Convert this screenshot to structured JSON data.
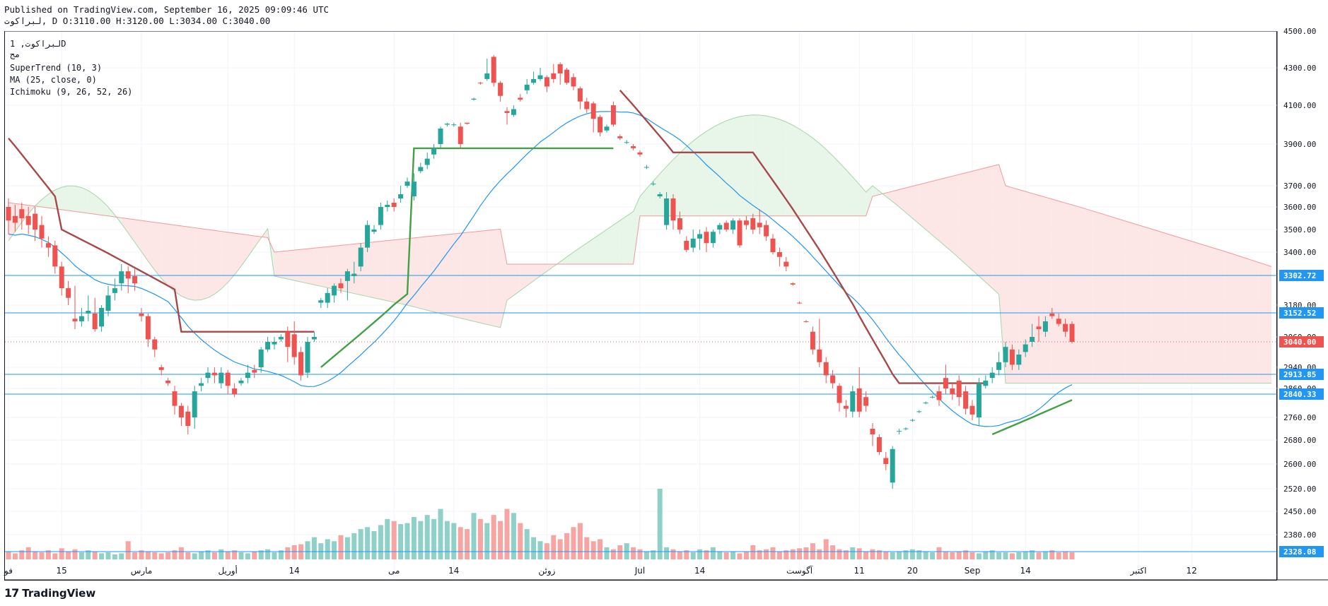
{
  "header": {
    "published": "Published on TradingView.com, September 16, 2025 09:09:46 UTC",
    "ohlc": "لبراكوت, D O:3110.00 H:3120.00 L:3034.00 C:3040.00"
  },
  "legend": {
    "symbol": "لبراكوت, 1D",
    "symbol_sub": "مج",
    "supertrend": "SuperTrend (10, 3)",
    "ma": "MA (25, close, 0)",
    "ichimoku": "Ichimoku (9, 26, 52, 26)"
  },
  "brand": {
    "logo": "17",
    "name": "TradingView"
  },
  "colors": {
    "up": "#26a69a",
    "down": "#ef5350",
    "supertrend_down": "#a84848",
    "supertrend_up": "#43a047",
    "ma": "#2196f3",
    "cloud_green": "#e8f5e9",
    "cloud_red": "#fde6e6",
    "hline": "#2196f3",
    "last_price": "#ef5350"
  },
  "chart_data": {
    "type": "candlestick",
    "y_ticks": [
      4500,
      4300,
      4100,
      3900,
      3700,
      3600,
      3500,
      3400,
      3180,
      3060,
      2940,
      2860,
      2760,
      2680,
      2600,
      2520,
      2450,
      2380
    ],
    "x_ticks": [
      {
        "i": 0,
        "label": "فو"
      },
      {
        "i": 8,
        "label": "15"
      },
      {
        "i": 20,
        "label": "مارس"
      },
      {
        "i": 33,
        "label": "أوريل"
      },
      {
        "i": 43,
        "label": "14"
      },
      {
        "i": 58,
        "label": "مى"
      },
      {
        "i": 67,
        "label": "14"
      },
      {
        "i": 81,
        "label": "زوئن"
      },
      {
        "i": 95,
        "label": "Jul"
      },
      {
        "i": 104,
        "label": "14"
      },
      {
        "i": 119,
        "label": "آگوست"
      },
      {
        "i": 128,
        "label": "11"
      },
      {
        "i": 136,
        "label": "20"
      },
      {
        "i": 145,
        "label": "Sep"
      },
      {
        "i": 153,
        "label": "14"
      },
      {
        "i": 170,
        "label": "اكتبر"
      },
      {
        "i": 178,
        "label": "12"
      }
    ],
    "horizontal_levels": [
      {
        "price": 3302.72,
        "label": "3302.72"
      },
      {
        "price": 3152.52,
        "label": "3152.52"
      },
      {
        "price": 2913.85,
        "label": "2913.85"
      },
      {
        "price": 2840.33,
        "label": "2840.33"
      },
      {
        "price": 2328.08,
        "label": "2328.08"
      }
    ],
    "last_price": {
      "price": 3040.0,
      "label": "3040.00"
    },
    "candles": [
      [
        3600,
        3540,
        3640,
        3480
      ],
      [
        3560,
        3530,
        3610,
        3490
      ],
      [
        3590,
        3550,
        3620,
        3500
      ],
      [
        3560,
        3520,
        3600,
        3480
      ],
      [
        3570,
        3500,
        3600,
        3450
      ],
      [
        3520,
        3460,
        3560,
        3420
      ],
      [
        3440,
        3420,
        3470,
        3380
      ],
      [
        3430,
        3340,
        3450,
        3310
      ],
      [
        3340,
        3250,
        3360,
        3220
      ],
      [
        3250,
        3210,
        3280,
        3180
      ],
      [
        3130,
        3120,
        3260,
        3090
      ],
      [
        3120,
        3140,
        3170,
        3100
      ],
      [
        3150,
        3160,
        3220,
        3120
      ],
      [
        3150,
        3090,
        3210,
        3080
      ],
      [
        3100,
        3170,
        3180,
        3080
      ],
      [
        3160,
        3220,
        3260,
        3140
      ],
      [
        3230,
        3250,
        3290,
        3200
      ],
      [
        3270,
        3320,
        3350,
        3240
      ],
      [
        3320,
        3290,
        3340,
        3230
      ],
      [
        3300,
        3270,
        3330,
        3240
      ],
      [
        3150,
        3140,
        3170,
        3120
      ],
      [
        3140,
        3050,
        3150,
        3020
      ],
      [
        3050,
        3010,
        3060,
        2980
      ],
      [
        2940,
        2930,
        2950,
        2910
      ],
      [
        2890,
        2880,
        2900,
        2870
      ],
      [
        2850,
        2800,
        2870,
        2770
      ],
      [
        2800,
        2760,
        2810,
        2730
      ],
      [
        2780,
        2730,
        2800,
        2700
      ],
      [
        2760,
        2850,
        2870,
        2720
      ],
      [
        2870,
        2880,
        2900,
        2850
      ],
      [
        2900,
        2920,
        2940,
        2880
      ],
      [
        2920,
        2910,
        2940,
        2880
      ],
      [
        2880,
        2920,
        2940,
        2860
      ],
      [
        2920,
        2870,
        2930,
        2840
      ],
      [
        2860,
        2840,
        2880,
        2830
      ],
      [
        2880,
        2890,
        2900,
        2870
      ],
      [
        2900,
        2920,
        2950,
        2880
      ],
      [
        2930,
        2920,
        2950,
        2900
      ],
      [
        2940,
        3010,
        3020,
        2920
      ],
      [
        3010,
        3040,
        3060,
        3000
      ],
      [
        3030,
        3040,
        3060,
        3010
      ],
      [
        3050,
        3060,
        3070,
        3040
      ],
      [
        3080,
        3020,
        3100,
        2960
      ],
      [
        3070,
        2980,
        3120,
        2950
      ],
      [
        3000,
        2910,
        3020,
        2890
      ],
      [
        2920,
        3040,
        3060,
        2900
      ],
      [
        3050,
        3060,
        3080,
        3040
      ],
      [
        3190,
        3200,
        3210,
        3170
      ],
      [
        3190,
        3230,
        3250,
        3170
      ],
      [
        3220,
        3260,
        3270,
        3190
      ],
      [
        3270,
        3250,
        3290,
        3230
      ],
      [
        3280,
        3320,
        3330,
        3200
      ],
      [
        3300,
        3310,
        3360,
        3270
      ],
      [
        3340,
        3420,
        3440,
        3320
      ],
      [
        3420,
        3520,
        3540,
        3400
      ],
      [
        3490,
        3500,
        3520,
        3480
      ],
      [
        3520,
        3600,
        3620,
        3500
      ],
      [
        3600,
        3610,
        3630,
        3580
      ],
      [
        3620,
        3600,
        3640,
        3580
      ],
      [
        3640,
        3660,
        3700,
        3620
      ],
      [
        3700,
        3720,
        3740,
        3690
      ],
      [
        3650,
        3720,
        3760,
        3630
      ],
      [
        3770,
        3790,
        3810,
        3760
      ],
      [
        3800,
        3830,
        3860,
        3780
      ],
      [
        3850,
        3880,
        3900,
        3830
      ],
      [
        3900,
        3980,
        3990,
        3880
      ],
      [
        4000,
        4005,
        4010,
        3990
      ],
      [
        4000,
        4001,
        4010,
        3990
      ],
      [
        3990,
        3900,
        4010,
        3880
      ],
      [
        4010,
        4005,
        4010,
        4000
      ],
      [
        4130,
        4135,
        4140,
        4125
      ],
      [
        4220,
        4218,
        4225,
        4210
      ],
      [
        4240,
        4270,
        4350,
        4230
      ],
      [
        4360,
        4220,
        4370,
        4200
      ],
      [
        4220,
        4150,
        4230,
        4120
      ],
      [
        4070,
        4060,
        4090,
        4000
      ],
      [
        4050,
        4080,
        4100,
        4040
      ],
      [
        4140,
        4130,
        4160,
        4120
      ],
      [
        4180,
        4210,
        4240,
        4160
      ],
      [
        4220,
        4240,
        4280,
        4210
      ],
      [
        4240,
        4260,
        4300,
        4230
      ],
      [
        4250,
        4200,
        4260,
        4170
      ],
      [
        4270,
        4240,
        4320,
        4220
      ],
      [
        4320,
        4270,
        4330,
        4210
      ],
      [
        4290,
        4220,
        4300,
        4210
      ],
      [
        4250,
        4200,
        4270,
        4180
      ],
      [
        4190,
        4120,
        4200,
        4080
      ],
      [
        4120,
        4080,
        4140,
        4060
      ],
      [
        4110,
        4030,
        4120,
        3960
      ],
      [
        4040,
        3960,
        4050,
        3940
      ],
      [
        3970,
        3990,
        4000,
        3960
      ],
      [
        4100,
        4000,
        4120,
        3990
      ],
      [
        3940,
        3930,
        3950,
        3920
      ],
      [
        3910,
        3910,
        3920,
        3900
      ],
      [
        3890,
        3880,
        3900,
        3870
      ],
      [
        3860,
        3850,
        3870,
        3840
      ],
      [
        3790,
        3790,
        3800,
        3780
      ],
      [
        3710,
        3710,
        3720,
        3700
      ],
      [
        3650,
        3660,
        3670,
        3640
      ],
      [
        3520,
        3640,
        3670,
        3500
      ],
      [
        3640,
        3540,
        3660,
        3500
      ],
      [
        3550,
        3500,
        3580,
        3480
      ],
      [
        3450,
        3410,
        3470,
        3400
      ],
      [
        3420,
        3460,
        3500,
        3400
      ],
      [
        3460,
        3480,
        3500,
        3410
      ],
      [
        3490,
        3440,
        3510,
        3400
      ],
      [
        3440,
        3490,
        3500,
        3420
      ],
      [
        3500,
        3520,
        3530,
        3480
      ],
      [
        3530,
        3500,
        3540,
        3490
      ],
      [
        3500,
        3540,
        3550,
        3480
      ],
      [
        3540,
        3430,
        3550,
        3420
      ],
      [
        3540,
        3520,
        3560,
        3500
      ],
      [
        3550,
        3500,
        3570,
        3480
      ],
      [
        3530,
        3510,
        3590,
        3480
      ],
      [
        3520,
        3470,
        3540,
        3450
      ],
      [
        3460,
        3400,
        3480,
        3390
      ],
      [
        3400,
        3380,
        3420,
        3340
      ],
      [
        3360,
        3340,
        3380,
        3320
      ],
      [
        3270,
        3265,
        3275,
        3260
      ],
      [
        3190,
        3188,
        3195,
        3185
      ],
      [
        3120,
        3118,
        3125,
        3115
      ],
      [
        3080,
        3010,
        3100,
        2990
      ],
      [
        3010,
        2960,
        3130,
        2940
      ],
      [
        2960,
        2910,
        2980,
        2880
      ],
      [
        2910,
        2880,
        2930,
        2860
      ],
      [
        2870,
        2810,
        2880,
        2780
      ],
      [
        2800,
        2790,
        2820,
        2760
      ],
      [
        2780,
        2850,
        2870,
        2760
      ],
      [
        2860,
        2780,
        2940,
        2760
      ],
      [
        2830,
        2800,
        2850,
        2780
      ],
      [
        2720,
        2700,
        2740,
        2660
      ],
      [
        2690,
        2640,
        2700,
        2630
      ],
      [
        2620,
        2600,
        2640,
        2580
      ],
      [
        2540,
        2650,
        2660,
        2520
      ],
      [
        2710,
        2712,
        2720,
        2700
      ],
      [
        2720,
        2721,
        2725,
        2715
      ],
      [
        2750,
        2751,
        2755,
        2745
      ],
      [
        2780,
        2781,
        2785,
        2775
      ],
      [
        2810,
        2811,
        2815,
        2805
      ],
      [
        2830,
        2831,
        2835,
        2825
      ],
      [
        2850,
        2820,
        2870,
        2800
      ],
      [
        2900,
        2860,
        2950,
        2840
      ],
      [
        2860,
        2840,
        2880,
        2820
      ],
      [
        2890,
        2830,
        2910,
        2800
      ],
      [
        2850,
        2790,
        2870,
        2770
      ],
      [
        2800,
        2770,
        2820,
        2750
      ],
      [
        2760,
        2880,
        2900,
        2730
      ],
      [
        2870,
        2890,
        2910,
        2860
      ],
      [
        2900,
        2920,
        2940,
        2880
      ],
      [
        2930,
        2960,
        3000,
        2910
      ],
      [
        2960,
        3020,
        3040,
        2940
      ],
      [
        3010,
        2950,
        3030,
        2930
      ],
      [
        2950,
        2990,
        3010,
        2930
      ],
      [
        3000,
        3030,
        3050,
        2980
      ],
      [
        3040,
        3060,
        3110,
        3020
      ],
      [
        3100,
        3090,
        3140,
        3040
      ],
      [
        3080,
        3120,
        3140,
        3060
      ],
      [
        3150,
        3140,
        3170,
        3130
      ],
      [
        3130,
        3110,
        3150,
        3100
      ],
      [
        3110,
        3080,
        3130,
        3060
      ],
      [
        3110,
        3040,
        3120,
        3034
      ]
    ],
    "volume": [
      8,
      6,
      9,
      12,
      8,
      7,
      9,
      6,
      11,
      8,
      10,
      7,
      9,
      8,
      6,
      7,
      5,
      6,
      18,
      7,
      9,
      8,
      7,
      6,
      7,
      9,
      12,
      7,
      6,
      8,
      9,
      7,
      10,
      8,
      9,
      7,
      6,
      8,
      9,
      10,
      7,
      9,
      12,
      14,
      15,
      18,
      22,
      16,
      20,
      18,
      24,
      22,
      26,
      30,
      32,
      28,
      34,
      40,
      38,
      35,
      36,
      42,
      38,
      44,
      40,
      50,
      38,
      36,
      32,
      30,
      46,
      40,
      36,
      44,
      38,
      50,
      46,
      36,
      30,
      22,
      18,
      16,
      24,
      20,
      26,
      32,
      36,
      22,
      18,
      20,
      12,
      10,
      14,
      16,
      12,
      10,
      8,
      9,
      70,
      12,
      10,
      8,
      9,
      7,
      10,
      9,
      12,
      8,
      7,
      8,
      6,
      8,
      14,
      9,
      10,
      12,
      8,
      9,
      10,
      11,
      12,
      16,
      10,
      20,
      14,
      10,
      9,
      12,
      11,
      8,
      10,
      9,
      8,
      7,
      8,
      9,
      10,
      9,
      8,
      7,
      12,
      8,
      7,
      8,
      9,
      7,
      6,
      8,
      9,
      7,
      7,
      6,
      7,
      8,
      9,
      7,
      8,
      9,
      7,
      8,
      7
    ]
  }
}
